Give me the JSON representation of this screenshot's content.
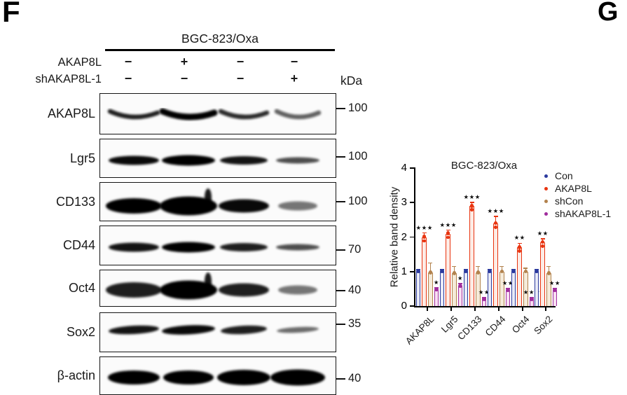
{
  "panel_labels": {
    "f": "F",
    "g": "G"
  },
  "blot": {
    "cell_line": "BGC-823/Oxa",
    "kda_label": "kDa",
    "conditions": [
      {
        "label": "AKAP8L",
        "lanes": [
          "−",
          "+",
          "−",
          "−"
        ]
      },
      {
        "label": "shAKAP8L-1",
        "lanes": [
          "−",
          "−",
          "−",
          "+"
        ]
      }
    ],
    "rows": [
      {
        "protein": "AKAP8L",
        "kda": "100",
        "style": "smile",
        "relative_intensity": [
          0.85,
          1.0,
          0.78,
          0.5
        ]
      },
      {
        "protein": "Lgr5",
        "kda": "100",
        "style": "bar",
        "relative_intensity": [
          0.95,
          1.0,
          0.9,
          0.6
        ]
      },
      {
        "protein": "CD133",
        "kda": "100",
        "style": "blob",
        "relative_intensity": [
          1.0,
          1.0,
          0.95,
          0.4
        ]
      },
      {
        "protein": "CD44",
        "kda": "70",
        "style": "bar",
        "relative_intensity": [
          0.9,
          1.0,
          0.85,
          0.6
        ]
      },
      {
        "protein": "Oct4",
        "kda": "40",
        "style": "blob",
        "relative_intensity": [
          0.85,
          1.0,
          0.85,
          0.4
        ]
      },
      {
        "protein": "Sox2",
        "kda": "35",
        "style": "tilt",
        "relative_intensity": [
          0.9,
          0.95,
          0.85,
          0.45
        ]
      },
      {
        "protein": "β-actin",
        "kda": "40",
        "style": "oval",
        "relative_intensity": [
          1.0,
          1.0,
          1.0,
          1.0
        ]
      }
    ]
  },
  "chart_data": {
    "type": "bar",
    "title": "BGC-823/Oxa",
    "ylabel": "Relative band density",
    "xlabel": "",
    "ylim": [
      0,
      4
    ],
    "yticks": [
      0,
      1,
      2,
      3,
      4
    ],
    "grid": false,
    "legend_position": "right",
    "sig_star_char": "★",
    "categories": [
      "AKAP8L",
      "Lgr5",
      "CD133",
      "CD44",
      "Oct4",
      "Sox2"
    ],
    "series": [
      {
        "name": "Con",
        "color": "#2b3a9e",
        "fill": "#e9ebf7",
        "values": [
          1.0,
          1.0,
          1.0,
          1.0,
          1.0,
          1.0
        ],
        "errors": [
          0.05,
          0.05,
          0.05,
          0.05,
          0.05,
          0.05
        ],
        "sig": [
          "",
          "",
          "",
          "",
          "",
          ""
        ]
      },
      {
        "name": "AKAP8L",
        "color": "#e83410",
        "fill": "#fdece6",
        "values": [
          2.0,
          2.1,
          2.9,
          2.4,
          1.7,
          1.85
        ],
        "errors": [
          0.12,
          0.1,
          0.1,
          0.2,
          0.12,
          0.1
        ],
        "sig": [
          "***",
          "***",
          "***",
          "***",
          "**",
          "**"
        ]
      },
      {
        "name": "shCon",
        "color": "#b2824d",
        "fill": "#f5ebda",
        "values": [
          0.97,
          0.95,
          0.97,
          1.0,
          1.0,
          0.95
        ],
        "errors": [
          0.28,
          0.2,
          0.18,
          0.15,
          0.1,
          0.2
        ],
        "sig": [
          "",
          "",
          "",
          "",
          "",
          ""
        ]
      },
      {
        "name": "shAKAP8L-1",
        "color": "#a02d9d",
        "fill": "#f8e0f3",
        "values": [
          0.47,
          0.57,
          0.2,
          0.45,
          0.2,
          0.45
        ],
        "errors": [
          0.06,
          0.08,
          0.04,
          0.06,
          0.04,
          0.06
        ],
        "sig": [
          "*",
          "*",
          "**",
          "**",
          "***",
          "**"
        ]
      }
    ]
  }
}
